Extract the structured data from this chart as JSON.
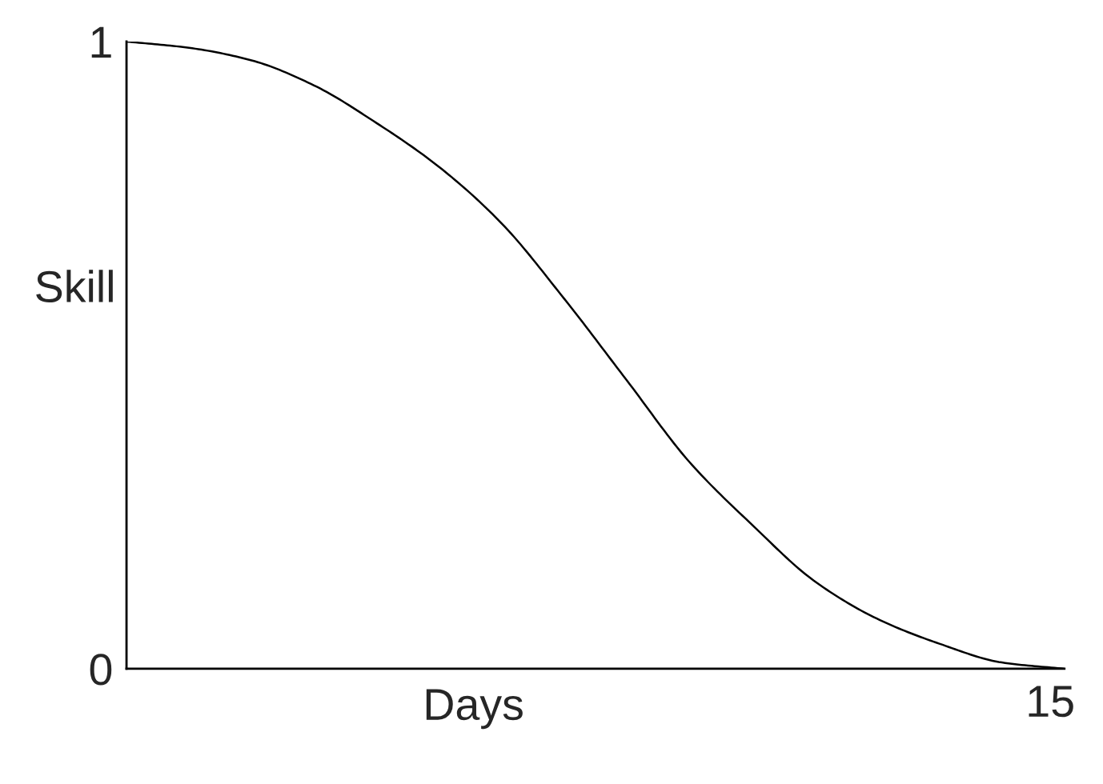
{
  "chart_data": {
    "type": "line",
    "xlabel": "Days",
    "ylabel": "Skill",
    "categories": [
      null,
      null,
      null,
      null,
      null,
      null,
      null,
      null,
      null,
      null,
      null,
      null,
      null,
      null,
      null,
      null
    ],
    "series": [
      {
        "color": "#000000",
        "values": [
          1.0,
          0.99,
          0.97,
          0.93,
          0.87,
          0.8,
          0.71,
          0.59,
          0.46,
          0.33,
          0.23,
          0.14,
          0.08,
          0.04,
          0.01,
          0
        ]
      }
    ],
    "ylim": [
      0,
      1
    ],
    "yticks": [
      0,
      1
    ],
    "annotations": [
      "15"
    ]
  }
}
